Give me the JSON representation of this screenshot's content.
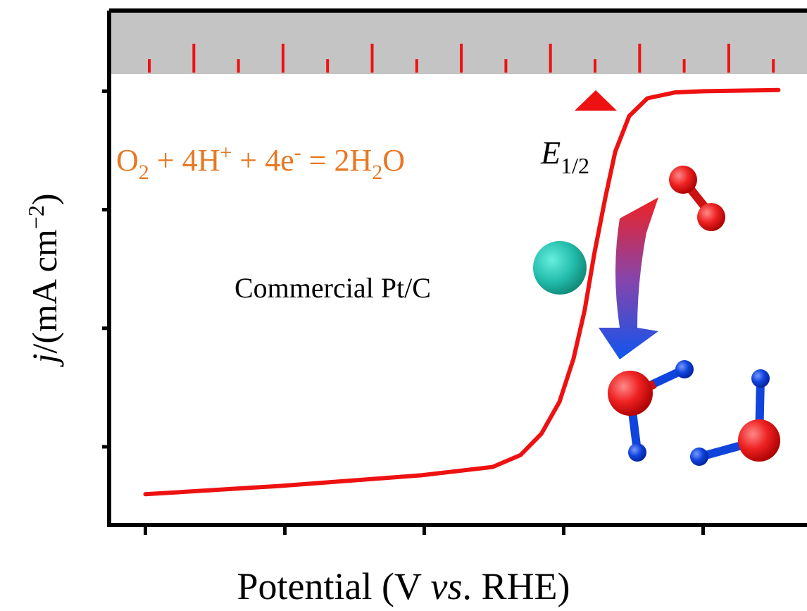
{
  "chart_data": {
    "type": "line",
    "x_label": [
      "Potential (V ",
      "vs",
      ". RHE)"
    ],
    "y_label": [
      "j",
      "/(mA cm",
      "−2",
      ")"
    ],
    "annotations": {
      "equation": [
        "O",
        "2",
        " + 4H",
        "+",
        " + 4e",
        "-",
        " = 2H",
        "2",
        "O"
      ],
      "e_half": [
        "E",
        "1/2"
      ],
      "catalyst": "Commercial Pt/C"
    },
    "x": [
      0,
      0.97,
      1.98,
      2.49,
      2.69,
      2.84,
      2.97,
      3.07,
      3.15,
      3.22,
      3.3,
      3.37,
      3.47,
      3.6,
      3.8,
      4.01,
      4.54
    ],
    "series": [
      {
        "color": "#ee1111",
        "values": [
          -0.4,
          -0.33,
          -0.24,
          -0.17,
          -0.07,
          0.11,
          0.38,
          0.74,
          1.15,
          1.63,
          2.11,
          2.49,
          2.79,
          2.94,
          2.99,
          3.0,
          3.01
        ]
      }
    ],
    "xlim": [
      -0.26,
      4.74
    ],
    "ylim": [
      -0.66,
      3.68
    ],
    "xticks": [
      0,
      1,
      2,
      3,
      4
    ],
    "yticks": [
      0,
      1,
      2,
      3
    ]
  }
}
